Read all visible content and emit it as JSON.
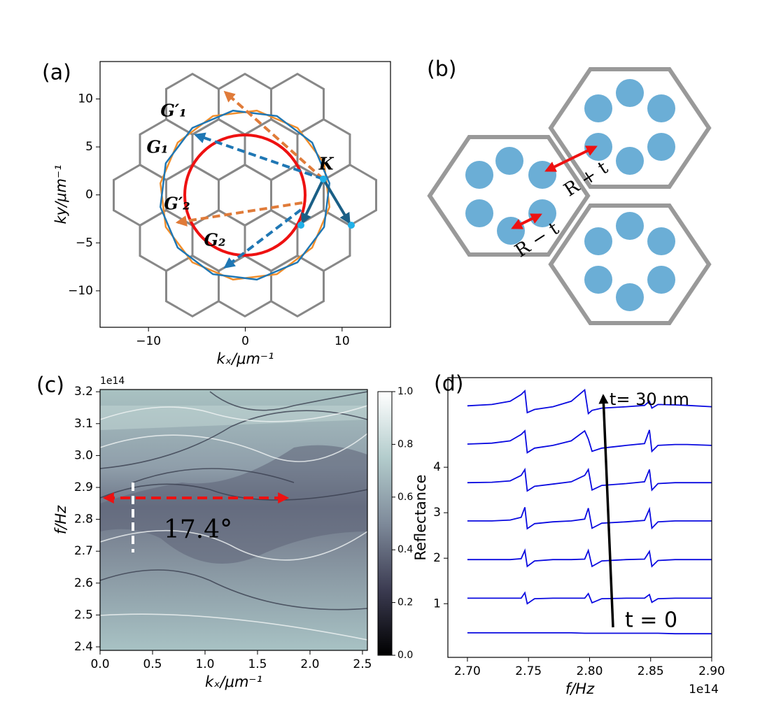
{
  "chart_data": [
    {
      "type": "vectors",
      "panel_label": "(a)",
      "xlabel": "kₓ/μm⁻¹",
      "ylabel": "ky/μm⁻¹",
      "xlim": [
        -15,
        15
      ],
      "ylim": [
        -13.8,
        13.9
      ],
      "xticks": [
        {
          "value": -10,
          "label": "−10"
        },
        0,
        10
      ],
      "yticks": [
        {
          "value": -10,
          "label": "−10"
        },
        {
          "value": -5,
          "label": "−5"
        },
        0,
        5,
        10
      ],
      "annotations": [
        "G′₁",
        "G₁",
        "G′₂",
        "G₂",
        "K"
      ]
    },
    {
      "type": "diagram",
      "panel_label": "(b)",
      "annotations": [
        "R + t",
        "R − t"
      ]
    },
    {
      "type": "heatmap",
      "panel_label": "(c)",
      "xlabel": "kₓ/μm⁻¹",
      "ylabel": "f/Hz",
      "y_offset_label": "1e14",
      "xlim": [
        0,
        2.547
      ],
      "ylim": [
        2.389,
        3.207
      ],
      "xticks": [
        {
          "value": 0,
          "label": "0.0"
        },
        0.5,
        {
          "value": 1,
          "label": "1.0"
        },
        1.5,
        {
          "value": 2,
          "label": "2.0"
        },
        2.5
      ],
      "yticks": [
        2.4,
        2.5,
        2.6,
        2.7,
        2.8,
        2.9,
        {
          "value": 3,
          "label": "3.0"
        },
        3.1,
        3.2
      ],
      "colorbar": {
        "clim": [
          0,
          1
        ],
        "colors": [
          "#000000",
          "#3c3c52",
          "#7e8a9a",
          "#b3cccc",
          "#ffffff"
        ],
        "ticks": [
          {
            "value": 0,
            "label": "0.0"
          },
          0.2,
          0.4,
          0.6,
          0.8,
          {
            "value": 1,
            "label": "1.0"
          }
        ]
      },
      "annotations": [
        "17.4°"
      ]
    },
    {
      "type": "line",
      "panel_label": "(d)",
      "xlabel": "f/Hz",
      "ylabel": "Reflectance",
      "x_offset_label": "1e14",
      "xlim": [
        2.684,
        2.9
      ],
      "ylim": [
        -0.18,
        5.97
      ],
      "xticks": [
        {
          "value": 2.7,
          "label": "2.70"
        },
        2.75,
        {
          "value": 2.8,
          "label": "2.80"
        },
        2.85,
        {
          "value": 2.9,
          "label": "2.90"
        }
      ],
      "yticks": [
        1,
        2,
        3,
        4
      ],
      "x": [
        2.7,
        2.72,
        2.735,
        2.744,
        2.747,
        2.749,
        2.755,
        2.77,
        2.785,
        2.796,
        2.799,
        2.802,
        2.81,
        2.83,
        2.845,
        2.849,
        2.851,
        2.856,
        2.87,
        2.88,
        2.9
      ],
      "series": [
        {
          "color": "#0a0ae0",
          "values": [
            0.36,
            0.36,
            0.36,
            0.36,
            0.36,
            0.36,
            0.36,
            0.36,
            0.36,
            0.35,
            0.35,
            0.35,
            0.35,
            0.35,
            0.35,
            0.35,
            0.35,
            0.35,
            0.34,
            0.34,
            0.34
          ]
        },
        {
          "color": "#0a0ae0",
          "values": [
            1.12,
            1.12,
            1.12,
            1.12,
            1.24,
            1.0,
            1.11,
            1.12,
            1.12,
            1.12,
            1.22,
            1.02,
            1.11,
            1.12,
            1.12,
            1.2,
            1.03,
            1.11,
            1.12,
            1.12,
            1.12
          ]
        },
        {
          "color": "#0a0ae0",
          "values": [
            1.97,
            1.97,
            1.97,
            1.99,
            2.17,
            1.82,
            1.94,
            1.97,
            1.97,
            1.98,
            2.17,
            1.82,
            1.94,
            1.97,
            1.98,
            2.15,
            1.82,
            1.95,
            1.97,
            1.97,
            1.97
          ]
        },
        {
          "color": "#0a0ae0",
          "values": [
            2.82,
            2.82,
            2.84,
            2.9,
            3.12,
            2.65,
            2.76,
            2.8,
            2.82,
            2.86,
            3.1,
            2.66,
            2.77,
            2.8,
            2.83,
            3.08,
            2.66,
            2.8,
            2.82,
            2.82,
            2.82
          ]
        },
        {
          "color": "#0a0ae0",
          "values": [
            3.66,
            3.67,
            3.7,
            3.82,
            3.95,
            3.48,
            3.58,
            3.63,
            3.68,
            3.82,
            3.95,
            3.5,
            3.6,
            3.64,
            3.68,
            3.95,
            3.5,
            3.64,
            3.66,
            3.66,
            3.66
          ]
        },
        {
          "color": "#0a0ae0",
          "values": [
            4.51,
            4.53,
            4.58,
            4.72,
            4.8,
            4.32,
            4.42,
            4.48,
            4.58,
            4.8,
            4.62,
            4.35,
            4.42,
            4.48,
            4.52,
            4.82,
            4.35,
            4.48,
            4.5,
            4.5,
            4.48
          ]
        },
        {
          "color": "#0a0ae0",
          "values": [
            5.35,
            5.38,
            5.45,
            5.6,
            5.68,
            5.2,
            5.27,
            5.33,
            5.45,
            5.7,
            5.18,
            5.25,
            5.3,
            5.33,
            5.36,
            5.45,
            5.3,
            5.38,
            5.37,
            5.36,
            5.33
          ]
        }
      ],
      "annotations": [
        "t= 30 nm",
        "t = 0"
      ]
    }
  ]
}
